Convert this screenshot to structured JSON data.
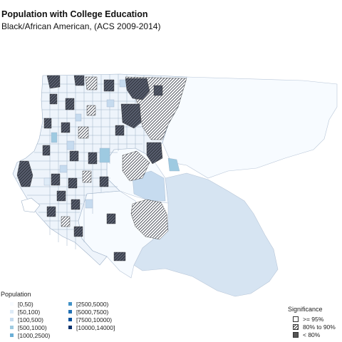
{
  "title": "Population with College Education",
  "subtitle": "Black/African American, (ACS 2009-2014)",
  "population_legend": {
    "title": "Population",
    "items": [
      {
        "label": "[0,50)",
        "color": "#f7fbff"
      },
      {
        "label": "[50,100)",
        "color": "#deebf7"
      },
      {
        "label": "[100,500)",
        "color": "#c6dbef"
      },
      {
        "label": "[500,1000)",
        "color": "#9ecae1"
      },
      {
        "label": "[1000,2500)",
        "color": "#6baed6"
      },
      {
        "label": "[2500,5000)",
        "color": "#4292c6"
      },
      {
        "label": "[5000,7500)",
        "color": "#2171b5"
      },
      {
        "label": "[7500,10000)",
        "color": "#08519c"
      },
      {
        "label": "[10000,14000]",
        "color": "#08306b"
      }
    ]
  },
  "significance_legend": {
    "title": "Significance",
    "items": [
      {
        "label": ">= 95%",
        "fill": "solid-white"
      },
      {
        "label": "80% to 90%",
        "fill": "hatched"
      },
      {
        "label": "< 80%",
        "fill": "dark"
      }
    ]
  }
}
